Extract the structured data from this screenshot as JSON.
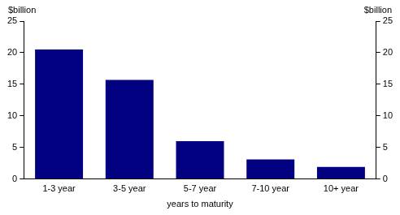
{
  "chart_data": {
    "type": "bar",
    "categories": [
      "1-3 year",
      "3-5 year",
      "5-7 year",
      "7-10 year",
      "10+ year"
    ],
    "values": [
      20.5,
      15.7,
      6.0,
      3.1,
      1.9
    ],
    "color": "#000080",
    "x_label": "years to maturity",
    "y_label": "$billion",
    "y2_label": "$billion",
    "ylim": [
      0,
      25
    ],
    "yticks": [
      0,
      5,
      10,
      15,
      20,
      25
    ],
    "y2lim": [
      0,
      25
    ],
    "y2ticks": [
      0,
      5,
      10,
      15,
      20,
      25
    ],
    "grid": false
  }
}
